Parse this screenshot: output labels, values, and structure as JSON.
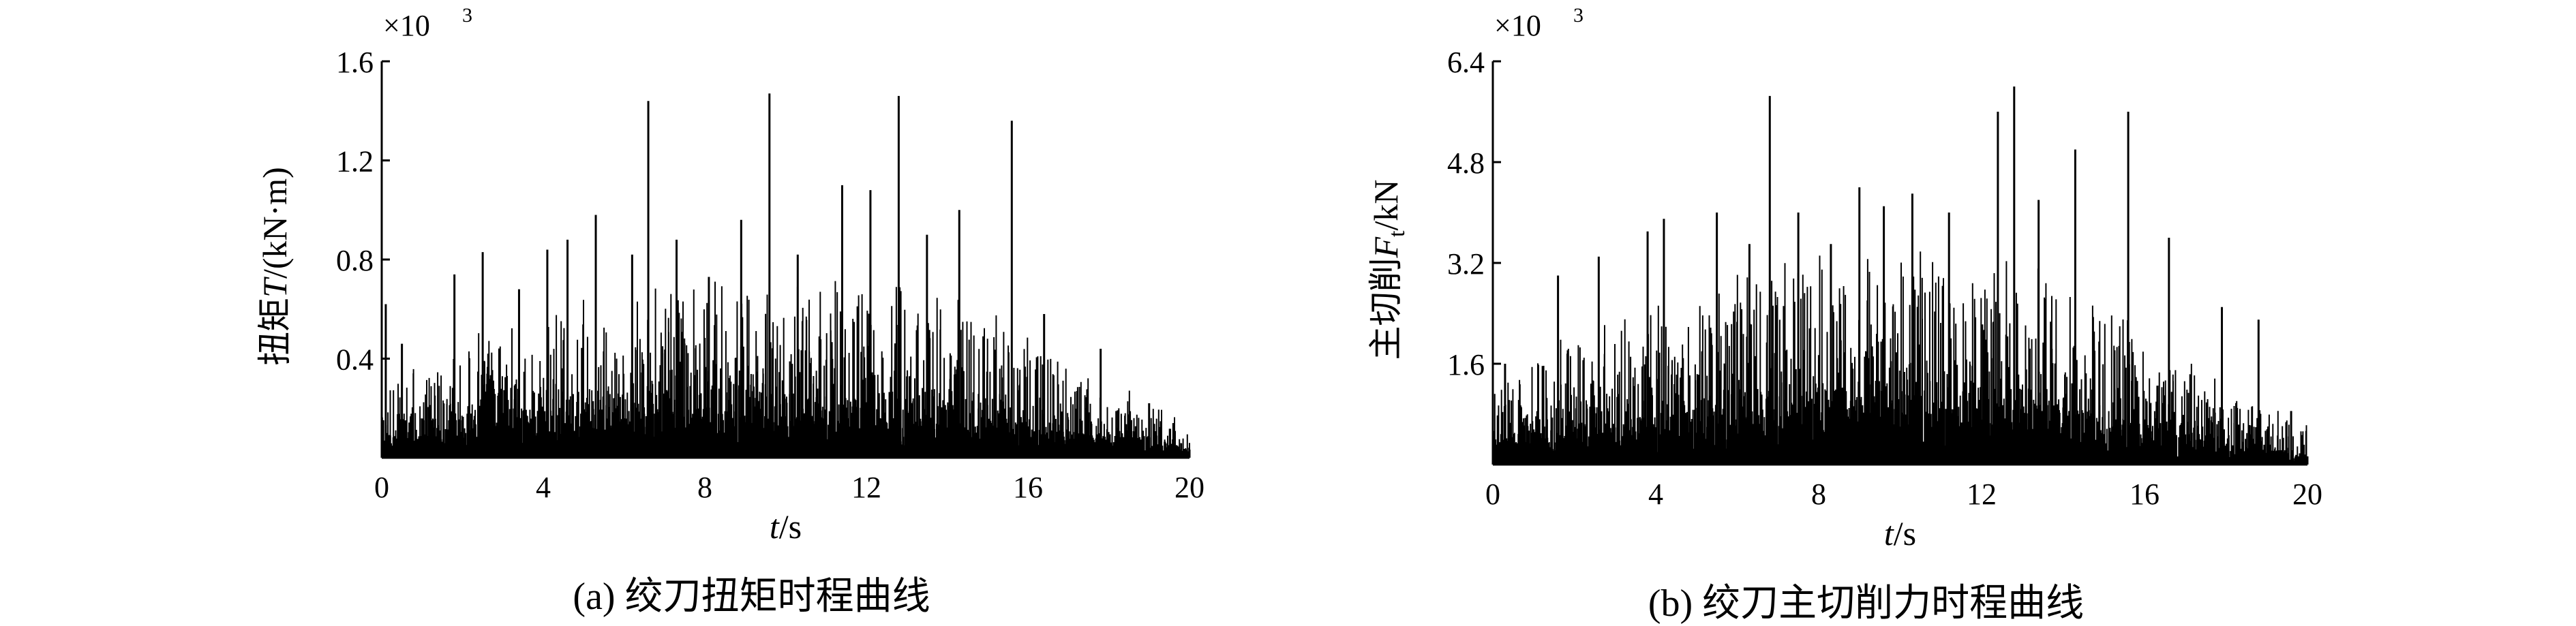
{
  "chart_data": [
    {
      "type": "line",
      "caption": "(a) 绞刀扭矩时程曲线",
      "xlabel_italic": "t",
      "xlabel_unit": "/s",
      "ylabel_prefix": "扭矩",
      "ylabel_italic": "T",
      "ylabel_unit": "/(kN·m)",
      "y_multiplier_base": "×10",
      "y_multiplier_exp": "3",
      "xlim": [
        0,
        20
      ],
      "ylim": [
        0,
        1.6
      ],
      "xticks": [
        0,
        4,
        8,
        12,
        16,
        20
      ],
      "xtick_labels": [
        "0",
        "4",
        "8",
        "12",
        "16",
        "20"
      ],
      "yticks": [
        0.4,
        0.8,
        1.2,
        1.6
      ],
      "ytick_labels": [
        "0.4",
        "0.8",
        "1.2",
        "1.6"
      ],
      "peaks": {
        "x": [
          0.1,
          0.5,
          1.8,
          2.5,
          3.4,
          4.1,
          4.6,
          5.3,
          6.2,
          6.6,
          7.3,
          8.1,
          8.9,
          9.6,
          10.3,
          11.4,
          12.1,
          12.8,
          13.5,
          14.3,
          15.6,
          16.4,
          17.8,
          19.0,
          19.6
        ],
        "y": [
          0.62,
          0.46,
          0.74,
          0.83,
          0.68,
          0.84,
          0.88,
          0.98,
          0.82,
          1.44,
          0.88,
          0.73,
          0.96,
          1.47,
          0.82,
          1.1,
          1.08,
          1.46,
          0.9,
          1.0,
          1.36,
          0.58,
          0.44,
          0.22,
          0.14
        ]
      },
      "noise": {
        "seed": 11,
        "count": 1400,
        "envelope": [
          [
            0,
            0.14
          ],
          [
            2,
            0.22
          ],
          [
            5,
            0.3
          ],
          [
            8,
            0.34
          ],
          [
            12,
            0.34
          ],
          [
            15,
            0.3
          ],
          [
            17,
            0.18
          ],
          [
            20,
            0.08
          ]
        ]
      }
    },
    {
      "type": "line",
      "caption": "(b) 绞刀主切削力时程曲线",
      "xlabel_italic": "t",
      "xlabel_unit": "/s",
      "ylabel_prefix": "主切削",
      "ylabel_italic": "F",
      "ylabel_sub": "t",
      "ylabel_unit": "/kN",
      "y_multiplier_base": "×10",
      "y_multiplier_exp": "3",
      "xlim": [
        0,
        20
      ],
      "ylim": [
        0,
        6.4
      ],
      "xticks": [
        0,
        4,
        8,
        12,
        16,
        20
      ],
      "xtick_labels": [
        "0",
        "4",
        "8",
        "12",
        "16",
        "20"
      ],
      "yticks": [
        1.6,
        3.2,
        4.8,
        6.4
      ],
      "ytick_labels": [
        "1.6",
        "3.2",
        "4.8",
        "6.4"
      ],
      "peaks": {
        "x": [
          0.3,
          1.6,
          2.6,
          3.8,
          4.2,
          5.5,
          6.3,
          6.8,
          7.5,
          8.3,
          9.0,
          9.6,
          10.3,
          11.2,
          12.4,
          12.8,
          13.4,
          14.3,
          15.6,
          16.6,
          17.9,
          18.8,
          19.6
        ],
        "y": [
          1.6,
          3.0,
          3.3,
          3.7,
          3.9,
          4.0,
          3.5,
          5.85,
          4.0,
          3.5,
          4.4,
          4.1,
          4.3,
          4.0,
          5.6,
          6.0,
          4.2,
          5.0,
          5.6,
          3.6,
          2.5,
          2.3,
          0.85
        ]
      },
      "noise": {
        "seed": 29,
        "count": 1400,
        "envelope": [
          [
            0,
            0.6
          ],
          [
            2,
            1.0
          ],
          [
            5,
            1.4
          ],
          [
            8,
            1.6
          ],
          [
            12,
            1.6
          ],
          [
            15,
            1.3
          ],
          [
            17,
            0.8
          ],
          [
            20,
            0.3
          ]
        ]
      }
    }
  ]
}
